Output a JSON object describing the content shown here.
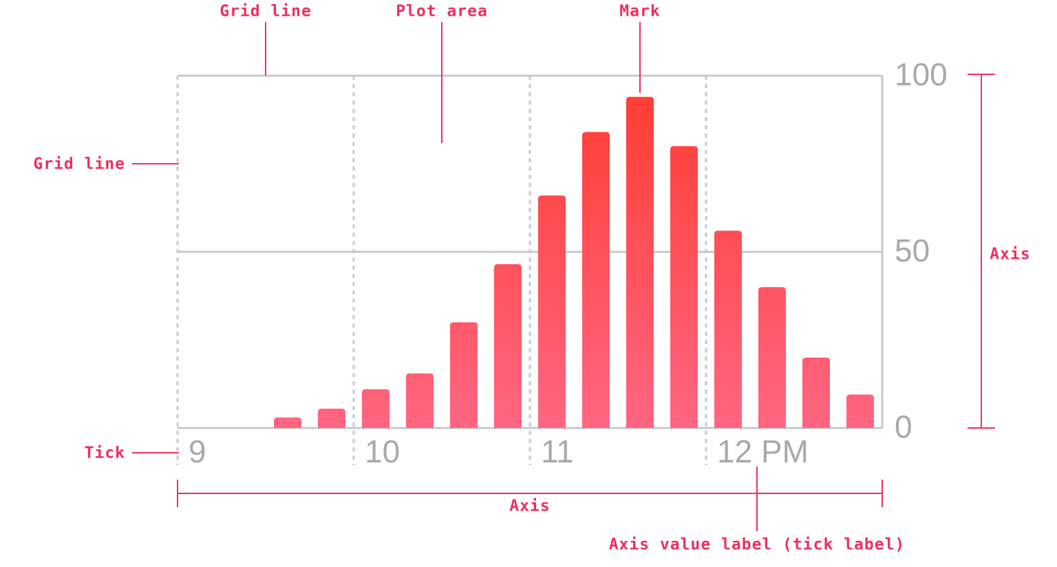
{
  "chart_data": {
    "type": "histogram",
    "bins": [
      9,
      9.25,
      9.5,
      9.75,
      10,
      10.25,
      10.5,
      10.75,
      11,
      11.25,
      11.5,
      11.75,
      12,
      12.25,
      12.5,
      12.75,
      13
    ],
    "values": [
      0,
      0,
      3,
      5.5,
      11,
      15.5,
      30,
      46.5,
      66,
      84,
      94,
      80,
      56,
      40,
      20,
      9.5
    ],
    "gradient": [
      "#ff3b30",
      "#ff6682"
    ],
    "xlim": [
      9,
      13
    ],
    "xticks": [
      9,
      10,
      11,
      {
        "value": 12,
        "label": "12 PM"
      }
    ],
    "ylim": [
      0,
      100
    ],
    "yticks": [
      0,
      50,
      100
    ],
    "grid": true,
    "annotations": [
      "Grid line",
      "Plot area",
      "Mark",
      "Grid line",
      "Tick",
      "Axis",
      "Axis",
      "Axis value label (tick label)"
    ]
  }
}
